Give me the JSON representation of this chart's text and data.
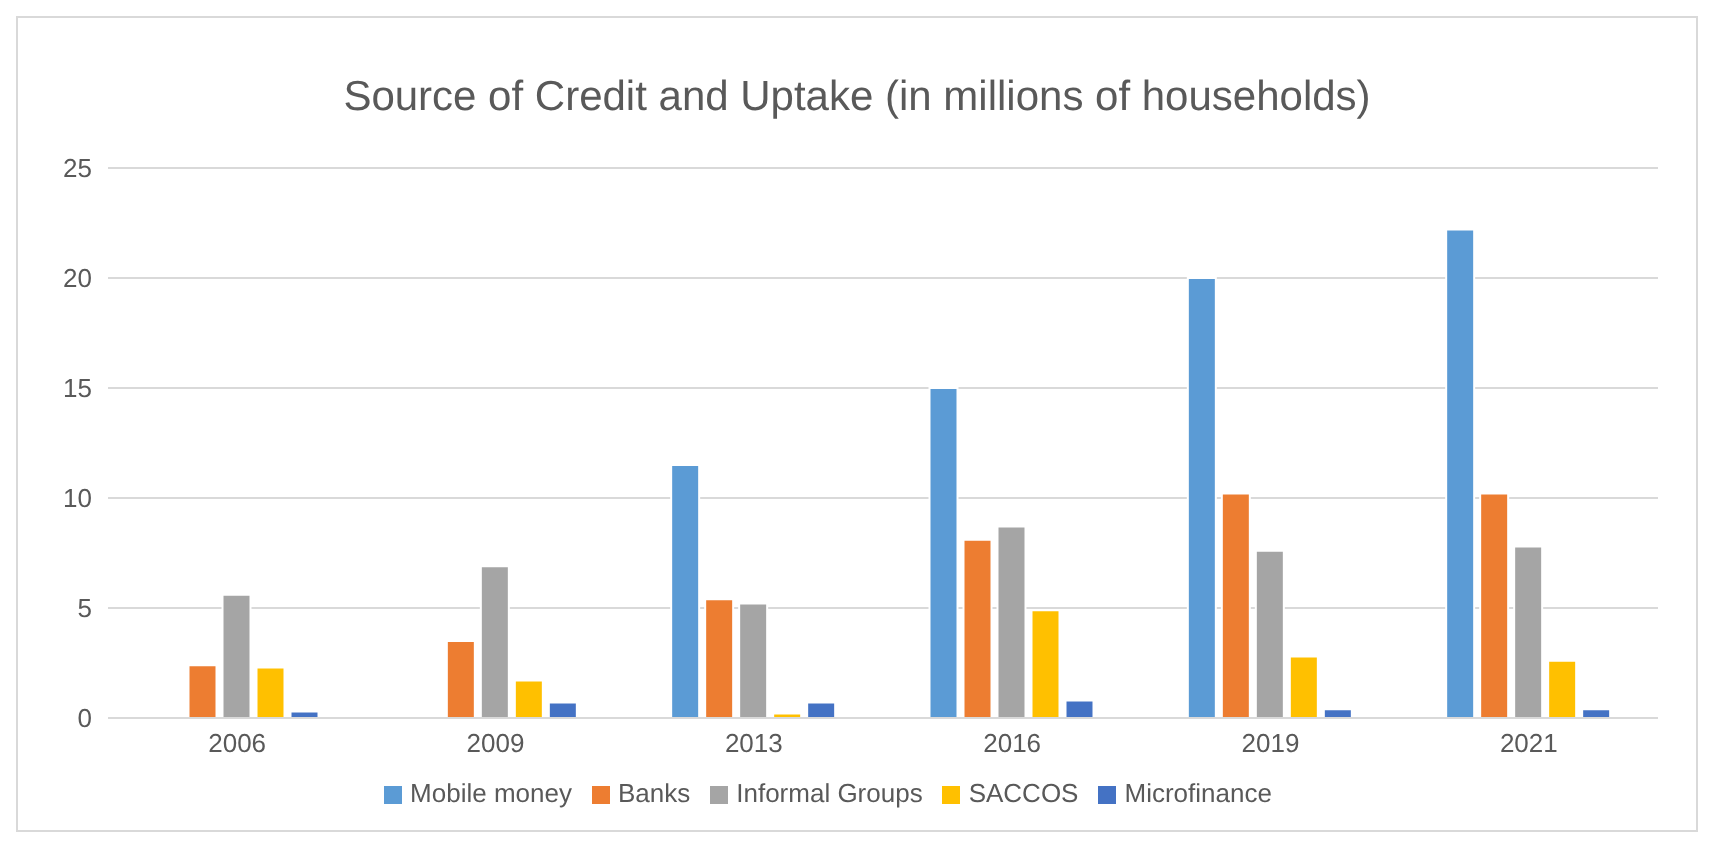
{
  "chart_data": {
    "type": "bar",
    "title": "Source of Credit and Uptake (in millions of households)",
    "categories": [
      "2006",
      "2009",
      "2013",
      "2016",
      "2019",
      "2021"
    ],
    "series": [
      {
        "name": "Mobile money",
        "color": "#5b9bd5",
        "values": [
          null,
          null,
          11.5,
          15.0,
          20.0,
          22.2
        ]
      },
      {
        "name": "Banks",
        "color": "#ed7d31",
        "values": [
          2.4,
          3.5,
          5.4,
          8.1,
          10.2,
          10.2
        ]
      },
      {
        "name": "Informal Groups",
        "color": "#a5a5a5",
        "values": [
          5.6,
          6.9,
          5.2,
          8.7,
          7.6,
          7.8
        ]
      },
      {
        "name": "SACCOS",
        "color": "#ffc000",
        "values": [
          2.3,
          1.7,
          0.2,
          4.9,
          2.8,
          2.6
        ]
      },
      {
        "name": "Microfinance",
        "color": "#4472c4",
        "values": [
          0.3,
          0.7,
          0.7,
          0.8,
          0.4,
          0.4
        ]
      }
    ],
    "ylim": [
      0,
      25
    ],
    "yticks": [
      0,
      5,
      10,
      15,
      20,
      25
    ],
    "grid": "y",
    "legend": "bottom"
  }
}
